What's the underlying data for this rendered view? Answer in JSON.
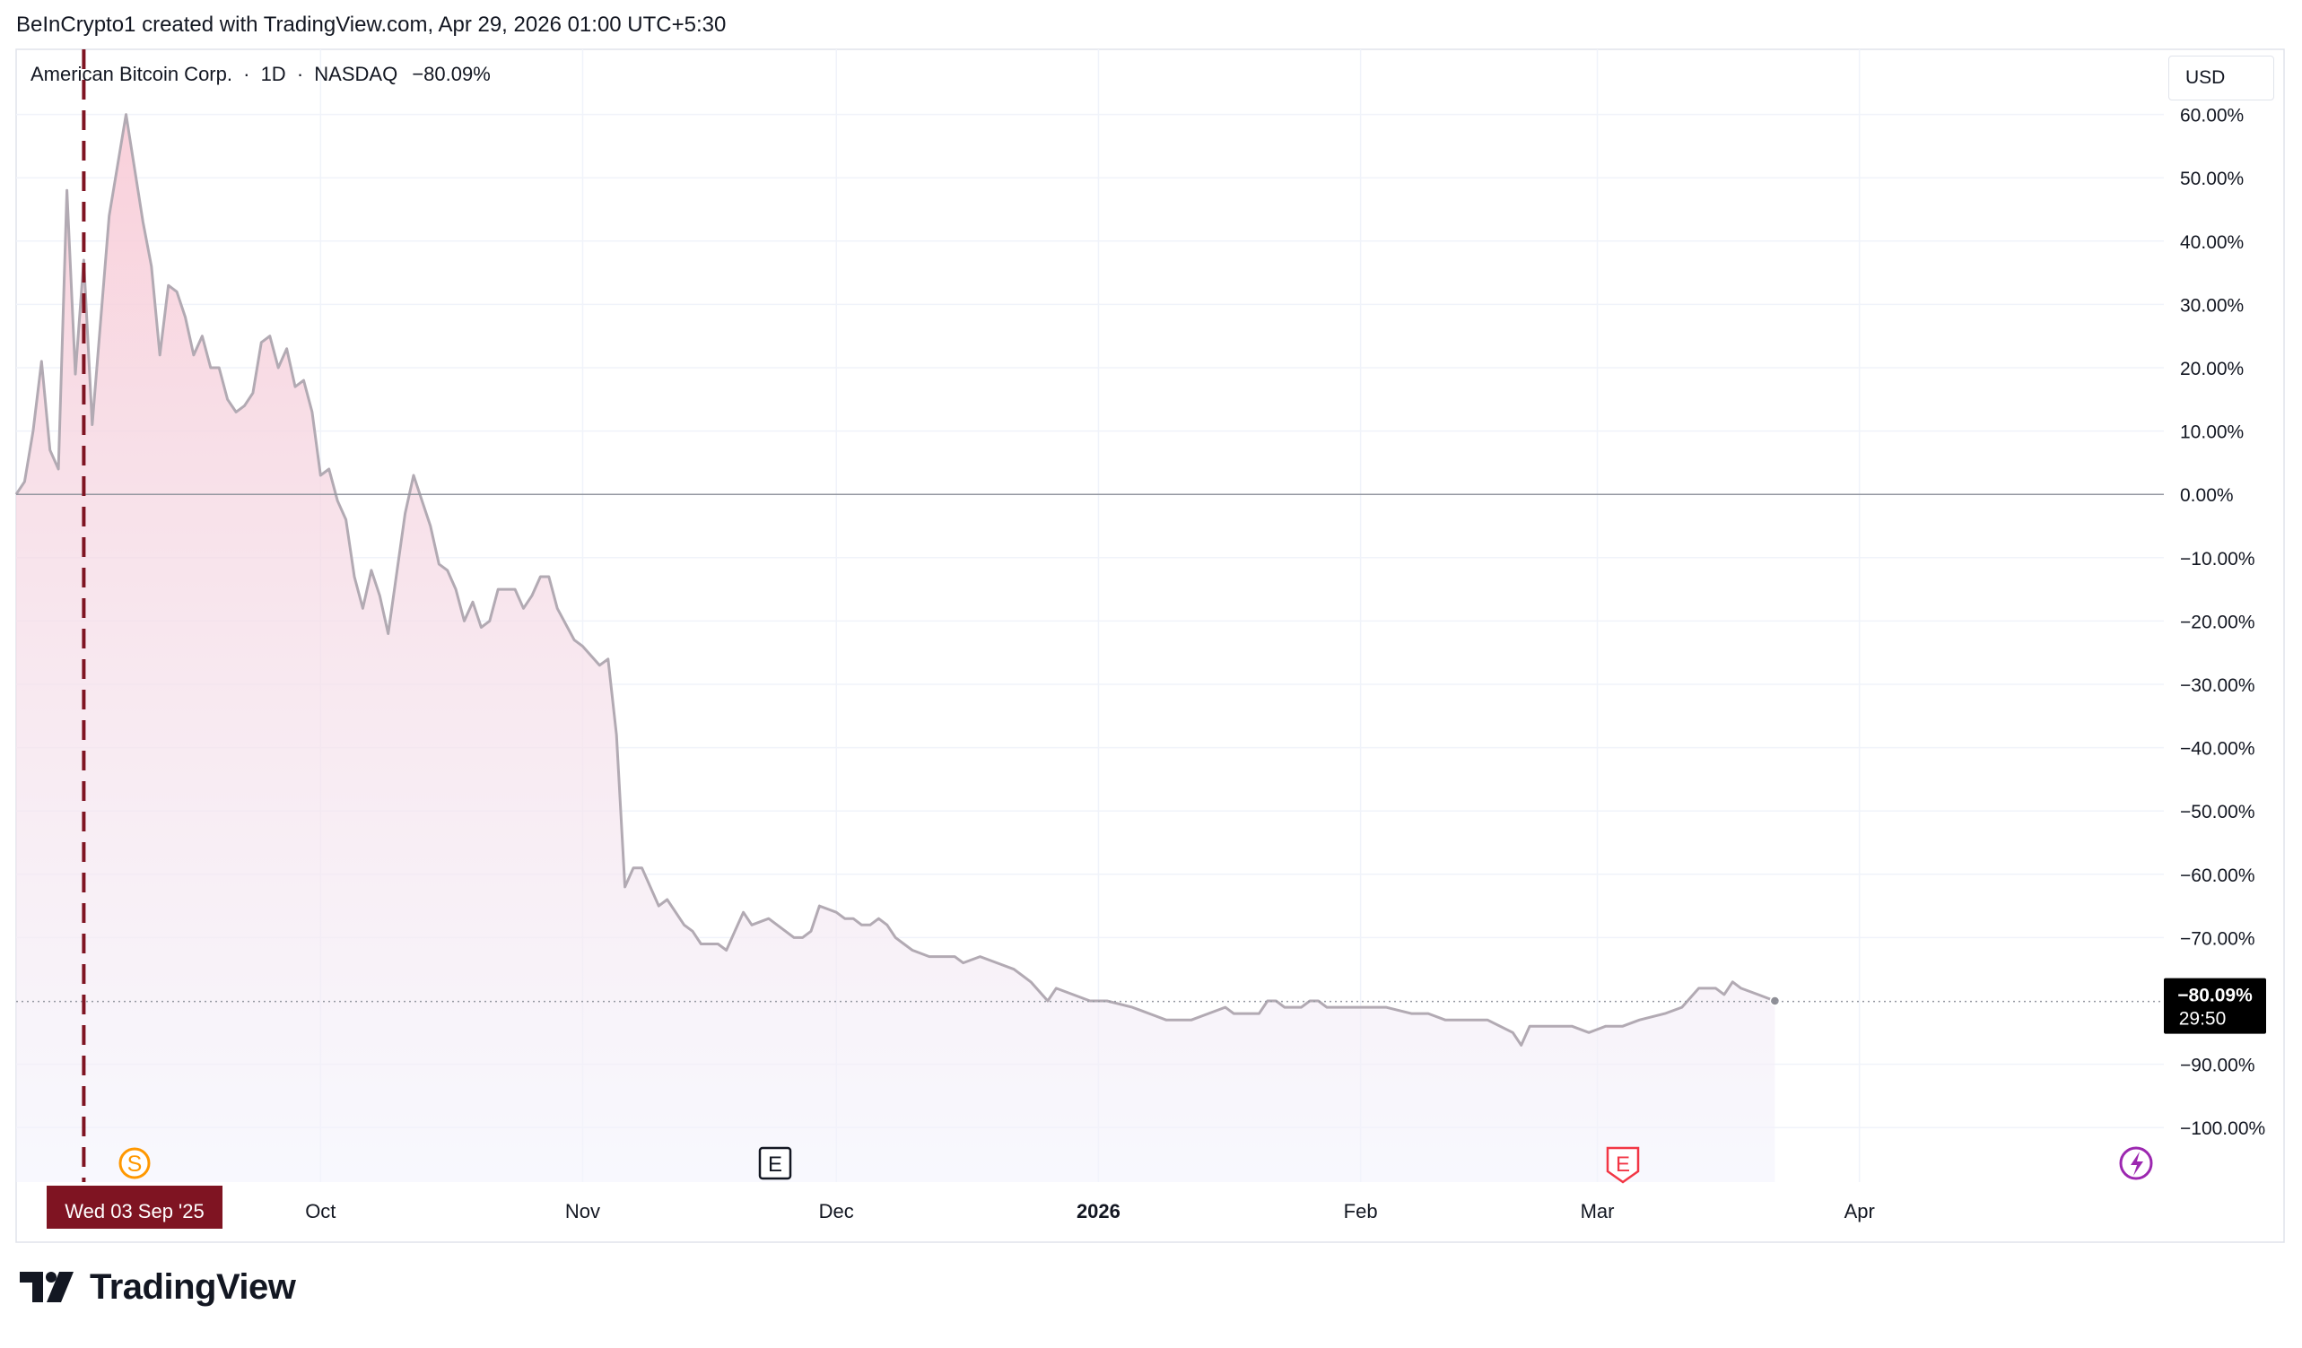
{
  "header": {
    "attribution": "BeInCrypto1 created with TradingView.com, Apr 29, 2026 01:00 UTC+5:30"
  },
  "legend": {
    "symbol_name": "American Bitcoin Corp.",
    "separator": "·",
    "interval": "1D",
    "exchange": "NASDAQ",
    "change": "−80.09%"
  },
  "currency_button": "USD",
  "price_label": {
    "value": "−80.09%",
    "countdown": "29:50"
  },
  "crosshair_label": "Wed 03 Sep '25",
  "footer_logo": {
    "text": "TradingView"
  },
  "markers": [
    {
      "letter": "S",
      "type": "split",
      "color": "#ff9800"
    },
    {
      "letter": "E",
      "type": "earnings",
      "color": "#131722"
    },
    {
      "letter": "E",
      "type": "earnings",
      "color": "#f23645"
    },
    {
      "letter": "",
      "type": "lightning-icon",
      "color": "#9c27b0"
    }
  ],
  "colors": {
    "line": "#b2aab3",
    "fill_top": "#f8c8d4",
    "fill_bottom": "#f3f4fd",
    "crosshair": "#7f1422",
    "zero_line": "#9598a1",
    "price_label_bg": "#000000"
  },
  "chart_data": {
    "type": "area",
    "title": "American Bitcoin Corp. · 1D · NASDAQ",
    "xlabel": "",
    "ylabel": "",
    "x_tick_labels": [
      "Oct",
      "Nov",
      "Dec",
      "2026",
      "Feb",
      "Mar",
      "Apr"
    ],
    "y_tick_labels": [
      "60.00%",
      "50.00%",
      "40.00%",
      "30.00%",
      "20.00%",
      "10.00%",
      "0.00%",
      "−10.00%",
      "−20.00%",
      "−30.00%",
      "−40.00%",
      "−50.00%",
      "−60.00%",
      "−70.00%",
      "−90.00%",
      "−100.00%"
    ],
    "y_ticks": [
      60,
      50,
      40,
      30,
      20,
      10,
      0,
      -10,
      -20,
      -30,
      -40,
      -50,
      -60,
      -70,
      -90,
      -100
    ],
    "ylim": [
      -100,
      70
    ],
    "xlim": [
      "2025-08-26",
      "2026-05-07"
    ],
    "grid": true,
    "legend": "top-left",
    "crosshair_date": "2025-09-03",
    "last_value": -80.09,
    "series": [
      {
        "values": [
          [
            "2025-08-26",
            0
          ],
          [
            "2025-08-27",
            2
          ],
          [
            "2025-08-28",
            10
          ],
          [
            "2025-08-29",
            21
          ],
          [
            "2025-08-30",
            7
          ],
          [
            "2025-08-31",
            4
          ],
          [
            "2025-09-01",
            48
          ],
          [
            "2025-09-02",
            19
          ],
          [
            "2025-09-03",
            37
          ],
          [
            "2025-09-04",
            11
          ],
          [
            "2025-09-06",
            44
          ],
          [
            "2025-09-08",
            60
          ],
          [
            "2025-09-10",
            43
          ],
          [
            "2025-09-11",
            36
          ],
          [
            "2025-09-12",
            22
          ],
          [
            "2025-09-13",
            33
          ],
          [
            "2025-09-14",
            32
          ],
          [
            "2025-09-15",
            28
          ],
          [
            "2025-09-16",
            22
          ],
          [
            "2025-09-17",
            25
          ],
          [
            "2025-09-18",
            20
          ],
          [
            "2025-09-19",
            20
          ],
          [
            "2025-09-20",
            15
          ],
          [
            "2025-09-21",
            13
          ],
          [
            "2025-09-22",
            14
          ],
          [
            "2025-09-23",
            16
          ],
          [
            "2025-09-24",
            24
          ],
          [
            "2025-09-25",
            25
          ],
          [
            "2025-09-26",
            20
          ],
          [
            "2025-09-27",
            23
          ],
          [
            "2025-09-28",
            17
          ],
          [
            "2025-09-29",
            18
          ],
          [
            "2025-09-30",
            13
          ],
          [
            "2025-10-01",
            3
          ],
          [
            "2025-10-02",
            4
          ],
          [
            "2025-10-03",
            -1
          ],
          [
            "2025-10-04",
            -4
          ],
          [
            "2025-10-05",
            -13
          ],
          [
            "2025-10-06",
            -18
          ],
          [
            "2025-10-07",
            -12
          ],
          [
            "2025-10-08",
            -16
          ],
          [
            "2025-10-09",
            -22
          ],
          [
            "2025-10-11",
            -3
          ],
          [
            "2025-10-12",
            3
          ],
          [
            "2025-10-13",
            -1
          ],
          [
            "2025-10-14",
            -5
          ],
          [
            "2025-10-15",
            -11
          ],
          [
            "2025-10-16",
            -12
          ],
          [
            "2025-10-17",
            -15
          ],
          [
            "2025-10-18",
            -20
          ],
          [
            "2025-10-19",
            -17
          ],
          [
            "2025-10-20",
            -21
          ],
          [
            "2025-10-21",
            -20
          ],
          [
            "2025-10-22",
            -15
          ],
          [
            "2025-10-24",
            -15
          ],
          [
            "2025-10-25",
            -18
          ],
          [
            "2025-10-26",
            -16
          ],
          [
            "2025-10-27",
            -13
          ],
          [
            "2025-10-28",
            -13
          ],
          [
            "2025-10-29",
            -18
          ],
          [
            "2025-10-31",
            -23
          ],
          [
            "2025-11-01",
            -24
          ],
          [
            "2025-11-03",
            -27
          ],
          [
            "2025-11-04",
            -26
          ],
          [
            "2025-11-05",
            -38
          ],
          [
            "2025-11-06",
            -62
          ],
          [
            "2025-11-07",
            -59
          ],
          [
            "2025-11-08",
            -59
          ],
          [
            "2025-11-10",
            -65
          ],
          [
            "2025-11-11",
            -64
          ],
          [
            "2025-11-13",
            -68
          ],
          [
            "2025-11-14",
            -69
          ],
          [
            "2025-11-15",
            -71
          ],
          [
            "2025-11-17",
            -71
          ],
          [
            "2025-11-18",
            -72
          ],
          [
            "2025-11-19",
            -69
          ],
          [
            "2025-11-20",
            -66
          ],
          [
            "2025-11-21",
            -68
          ],
          [
            "2025-11-23",
            -67
          ],
          [
            "2025-11-26",
            -70
          ],
          [
            "2025-11-27",
            -70
          ],
          [
            "2025-11-28",
            -69
          ],
          [
            "2025-11-29",
            -65
          ],
          [
            "2025-12-01",
            -66
          ],
          [
            "2025-12-02",
            -67
          ],
          [
            "2025-12-03",
            -67
          ],
          [
            "2025-12-04",
            -68
          ],
          [
            "2025-12-05",
            -68
          ],
          [
            "2025-12-06",
            -67
          ],
          [
            "2025-12-07",
            -68
          ],
          [
            "2025-12-08",
            -70
          ],
          [
            "2025-12-09",
            -71
          ],
          [
            "2025-12-10",
            -72
          ],
          [
            "2025-12-12",
            -73
          ],
          [
            "2025-12-15",
            -73
          ],
          [
            "2025-12-16",
            -74
          ],
          [
            "2025-12-18",
            -73
          ],
          [
            "2025-12-20",
            -74
          ],
          [
            "2025-12-22",
            -75
          ],
          [
            "2025-12-24",
            -77
          ],
          [
            "2025-12-26",
            -80
          ],
          [
            "2025-12-27",
            -78
          ],
          [
            "2025-12-31",
            -80
          ],
          [
            "2026-01-02",
            -80
          ],
          [
            "2026-01-05",
            -81
          ],
          [
            "2026-01-07",
            -82
          ],
          [
            "2026-01-09",
            -83
          ],
          [
            "2026-01-12",
            -83
          ],
          [
            "2026-01-14",
            -82
          ],
          [
            "2026-01-16",
            -81
          ],
          [
            "2026-01-17",
            -82
          ],
          [
            "2026-01-20",
            -82
          ],
          [
            "2026-01-21",
            -80
          ],
          [
            "2026-01-22",
            -80
          ],
          [
            "2026-01-23",
            -81
          ],
          [
            "2026-01-25",
            -81
          ],
          [
            "2026-01-26",
            -80
          ],
          [
            "2026-01-27",
            -80
          ],
          [
            "2026-01-28",
            -81
          ],
          [
            "2026-01-31",
            -81
          ],
          [
            "2026-02-03",
            -81
          ],
          [
            "2026-02-04",
            -81
          ],
          [
            "2026-02-07",
            -82
          ],
          [
            "2026-02-09",
            -82
          ],
          [
            "2026-02-11",
            -83
          ],
          [
            "2026-02-13",
            -83
          ],
          [
            "2026-02-15",
            -83
          ],
          [
            "2026-02-16",
            -83
          ],
          [
            "2026-02-19",
            -85
          ],
          [
            "2026-02-20",
            -87
          ],
          [
            "2026-02-21",
            -84
          ],
          [
            "2026-02-24",
            -84
          ],
          [
            "2026-02-26",
            -84
          ],
          [
            "2026-02-28",
            -85
          ],
          [
            "2026-03-02",
            -84
          ],
          [
            "2026-03-04",
            -84
          ],
          [
            "2026-03-06",
            -83
          ],
          [
            "2026-03-09",
            -82
          ],
          [
            "2026-03-11",
            -81
          ],
          [
            "2026-03-13",
            -78
          ],
          [
            "2026-03-15",
            -78
          ],
          [
            "2026-03-16",
            -79
          ],
          [
            "2026-03-17",
            -77
          ],
          [
            "2026-03-18",
            -78
          ],
          [
            "2026-03-20",
            -79
          ],
          [
            "2026-03-22",
            -80
          ]
        ]
      }
    ]
  }
}
